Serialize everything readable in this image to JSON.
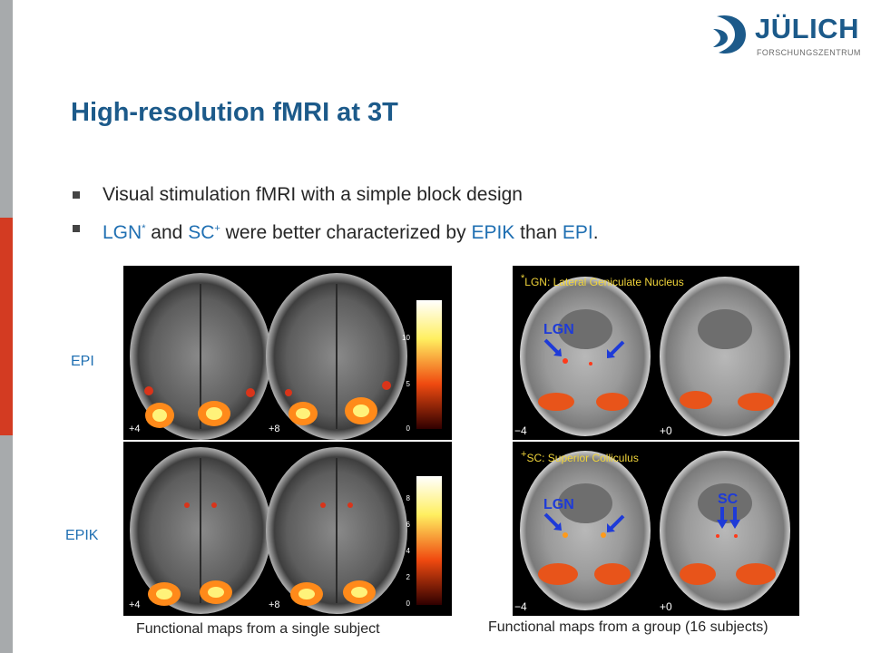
{
  "logo": {
    "name": "JÜLICH",
    "subtitle": "FORSCHUNGSZENTRUM"
  },
  "slide": {
    "title": "High-resolution fMRI at 3T",
    "bullet1": "Visual stimulation fMRI with a simple block design",
    "b2_lgn": "LGN",
    "b2_star": "*",
    "b2_and": " and ",
    "b2_sc": "SC",
    "b2_plus": "+",
    "b2_mid": " were better characterized by ",
    "b2_epik": "EPIK",
    "b2_than": " than ",
    "b2_epi": "EPI",
    "b2_end": "."
  },
  "labels": {
    "epi": "EPI",
    "epik": "EPIK"
  },
  "single": {
    "slice1": "+4",
    "slice2": "+8",
    "scale_epi": [
      "10",
      "5",
      "0"
    ],
    "scale_epik": [
      "8",
      "6",
      "4",
      "2",
      "0"
    ],
    "caption": "Functional maps from a single subject"
  },
  "group": {
    "slice1": "−4",
    "slice2": "+0",
    "note1_mark": "*",
    "note1": "LGN: Lateral Geniculate Nucleus",
    "note2_mark": "+",
    "note2": "SC: Superior Colliculus",
    "lgn": "LGN",
    "sc": "SC",
    "caption": "Functional maps from a group (16 subjects)"
  },
  "colors": {
    "title": "#1c5a8a",
    "highlight": "#1f6fb2",
    "footnote": "#f0d43a",
    "bar_red": "#d33b22",
    "bar_gray": "#a7aaac"
  }
}
